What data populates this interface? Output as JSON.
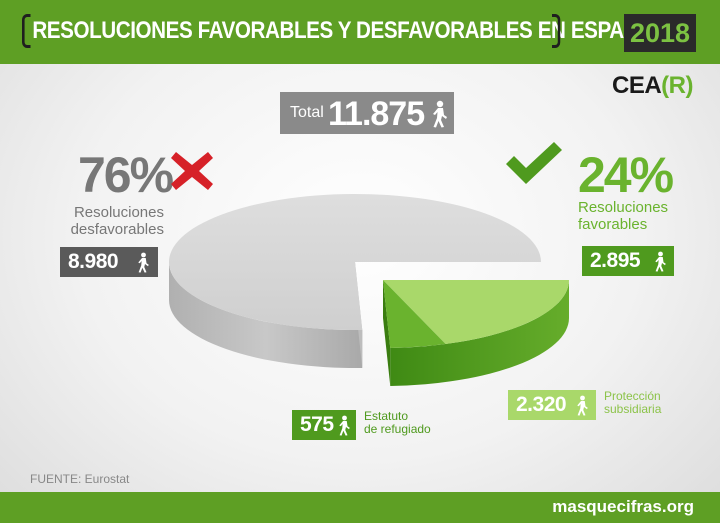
{
  "header": {
    "title": "RESOLUCIONES FAVORABLES Y DESFAVORABLES EN ESPAÑA",
    "year": "2018"
  },
  "logo": {
    "text_a": "CEA",
    "text_b": "(R)"
  },
  "total": {
    "label": "Total",
    "value": "11.875"
  },
  "unfavorable": {
    "percent": "76%",
    "label_line1": "Resoluciones",
    "label_line2": "desfavorables",
    "value": "8.980"
  },
  "favorable": {
    "percent": "24%",
    "label_line1": "Resoluciones",
    "label_line2": "favorables",
    "value": "2.895"
  },
  "subsidiary": {
    "value": "2.320",
    "label_line1": "Protección",
    "label_line2": "subsidiaria"
  },
  "refugee": {
    "value": "575",
    "label_line1": "Estatuto",
    "label_line2": "de refugiado"
  },
  "source": "FUENTE: Eurostat",
  "footer": "masquecifras.org",
  "colors": {
    "header_green": "#5e9f24",
    "favorable_green": "#6ab32e",
    "subsidiary_green": "#a9d86a",
    "refugee_green": "#4f9a1e",
    "unfavorable_gray": "#d0d0d0"
  },
  "chart_data": {
    "type": "pie",
    "title": "RESOLUCIONES FAVORABLES Y DESFAVORABLES EN ESPAÑA",
    "total": 11875,
    "slices": [
      {
        "label": "Resoluciones desfavorables",
        "value": 8980,
        "percent": 76
      },
      {
        "label": "Estatuto de refugiado",
        "value": 575,
        "parent": "Resoluciones favorables"
      },
      {
        "label": "Protección subsidiaria",
        "value": 2320,
        "parent": "Resoluciones favorables"
      }
    ],
    "groups": [
      {
        "label": "Resoluciones favorables",
        "value": 2895,
        "percent": 24
      }
    ]
  }
}
